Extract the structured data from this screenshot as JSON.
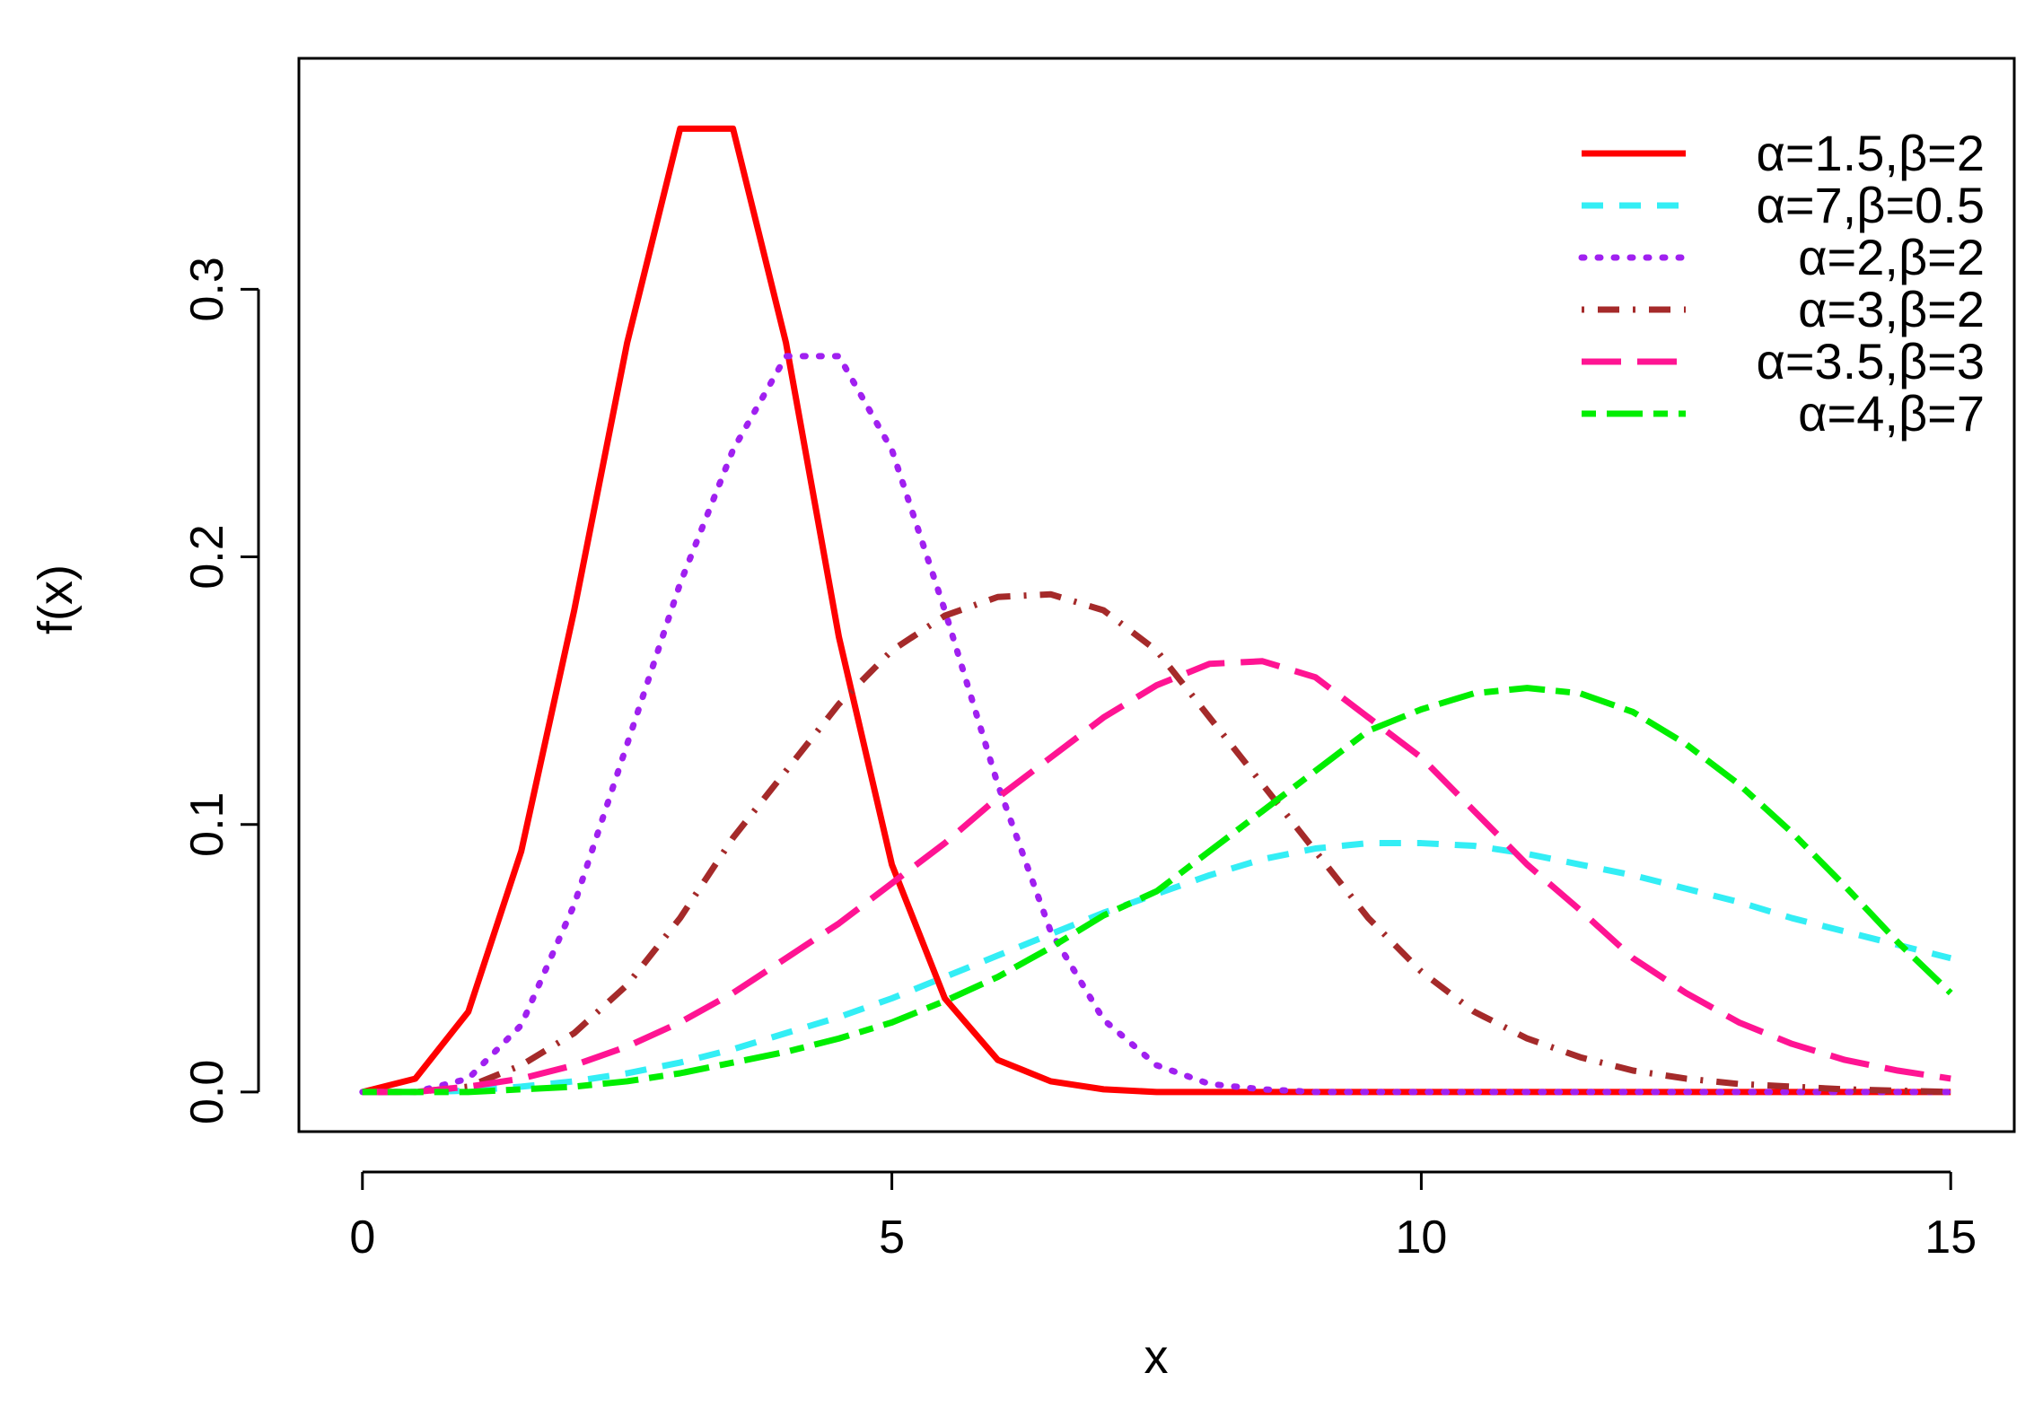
{
  "chart_data": {
    "type": "line",
    "x_label": "x",
    "y_label": "f(x)",
    "x": [
      0,
      0.5,
      1,
      1.5,
      2,
      2.5,
      3,
      3.5,
      4,
      4.5,
      5,
      5.5,
      6,
      6.5,
      7,
      7.5,
      8,
      8.5,
      9,
      9.5,
      10,
      10.5,
      11,
      11.5,
      12,
      12.5,
      13,
      13.5,
      14,
      14.5,
      15
    ],
    "xlim": [
      -0.6,
      15.6
    ],
    "ylim": [
      -0.0148,
      0.3863
    ],
    "xticks": [
      0,
      5,
      10,
      15
    ],
    "yticks": [
      {
        "value": 0,
        "label": "0.0"
      },
      0.1,
      0.2,
      0.3
    ],
    "legend": "top-right",
    "series": [
      {
        "name": "α=1.5,β=2",
        "color": "#ff0000",
        "style": "solid",
        "values": [
          0,
          0.005,
          0.03,
          0.09,
          0.18,
          0.28,
          0.36,
          0.36,
          0.28,
          0.17,
          0.085,
          0.035,
          0.012,
          0.004,
          0.001,
          0,
          0,
          0,
          0,
          0,
          0,
          0,
          0,
          0,
          0,
          0,
          0,
          0,
          0,
          0,
          0
        ]
      },
      {
        "name": "α=7,β=0.5",
        "color": "#33eef5",
        "style": "dashed",
        "values": [
          0,
          0,
          0.0005,
          0.002,
          0.004,
          0.007,
          0.011,
          0.016,
          0.022,
          0.028,
          0.035,
          0.043,
          0.051,
          0.059,
          0.067,
          0.074,
          0.081,
          0.087,
          0.091,
          0.093,
          0.093,
          0.092,
          0.089,
          0.085,
          0.081,
          0.076,
          0.071,
          0.065,
          0.06,
          0.055,
          0.05
        ]
      },
      {
        "name": "α=2,β=2",
        "color": "#a020f0",
        "style": "dotted",
        "values": [
          0,
          0,
          0.005,
          0.025,
          0.07,
          0.13,
          0.19,
          0.24,
          0.275,
          0.275,
          0.24,
          0.18,
          0.115,
          0.06,
          0.027,
          0.01,
          0.003,
          0.001,
          0,
          0,
          0,
          0,
          0,
          0,
          0,
          0,
          0,
          0,
          0,
          0,
          0
        ]
      },
      {
        "name": "α=3,β=2",
        "color": "#a52a2a",
        "style": "dotdash",
        "values": [
          0,
          0,
          0.002,
          0.01,
          0.022,
          0.04,
          0.065,
          0.095,
          0.12,
          0.145,
          0.165,
          0.178,
          0.185,
          0.186,
          0.18,
          0.165,
          0.14,
          0.115,
          0.09,
          0.065,
          0.045,
          0.03,
          0.02,
          0.013,
          0.008,
          0.005,
          0.003,
          0.002,
          0.001,
          0.0005,
          0
        ]
      },
      {
        "name": "α=3.5,β=3",
        "color": "#ff1493",
        "style": "longdash",
        "values": [
          0,
          0,
          0.002,
          0.005,
          0.01,
          0.017,
          0.026,
          0.037,
          0.05,
          0.063,
          0.078,
          0.093,
          0.11,
          0.125,
          0.14,
          0.152,
          0.16,
          0.161,
          0.155,
          0.14,
          0.125,
          0.105,
          0.085,
          0.068,
          0.05,
          0.037,
          0.026,
          0.018,
          0.012,
          0.008,
          0.005
        ]
      },
      {
        "name": "α=4,β=7",
        "color": "#00ee00",
        "style": "twodash",
        "values": [
          0,
          0,
          0,
          0.001,
          0.002,
          0.004,
          0.007,
          0.011,
          0.015,
          0.02,
          0.026,
          0.034,
          0.043,
          0.054,
          0.066,
          0.075,
          0.09,
          0.105,
          0.12,
          0.135,
          0.143,
          0.149,
          0.151,
          0.149,
          0.142,
          0.13,
          0.115,
          0.097,
          0.077,
          0.056,
          0.037
        ]
      }
    ]
  }
}
